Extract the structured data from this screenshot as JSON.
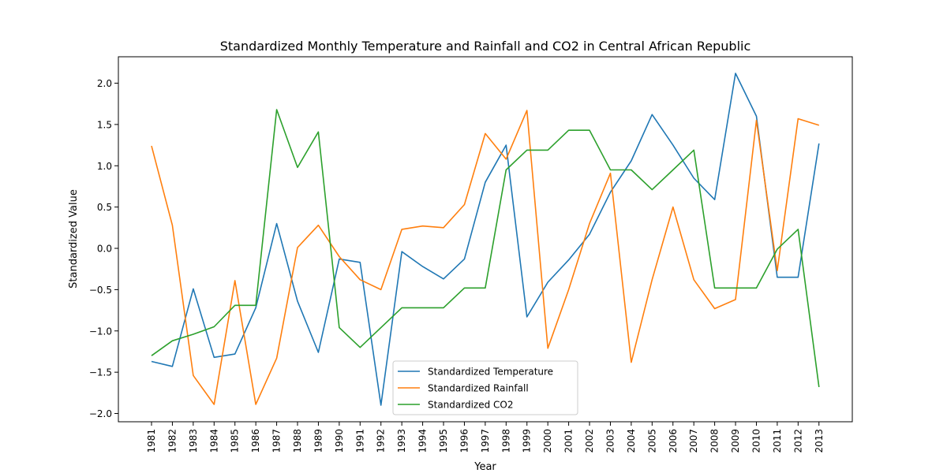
{
  "chart_data": {
    "type": "line",
    "title": "Standardized Monthly Temperature and Rainfall and CO2 in Central African Republic",
    "xlabel": "Year",
    "ylabel": "Standardized Value",
    "x": [
      "1981",
      "1982",
      "1983",
      "1984",
      "1985",
      "1986",
      "1987",
      "1988",
      "1989",
      "1990",
      "1991",
      "1992",
      "1993",
      "1994",
      "1995",
      "1996",
      "1997",
      "1998",
      "1999",
      "2000",
      "2001",
      "2002",
      "2003",
      "2004",
      "2005",
      "2006",
      "2007",
      "2008",
      "2009",
      "2010",
      "2011",
      "2012",
      "2013"
    ],
    "yticks": [
      "−2.0",
      "−1.5",
      "−1.0",
      "−0.5",
      "0.0",
      "0.5",
      "1.0",
      "1.5",
      "2.0"
    ],
    "ylim": [
      -2.1,
      2.32
    ],
    "grid": false,
    "legend_position": "lower-center",
    "series": [
      {
        "name": "Standardized Temperature",
        "color": "#1f77b4",
        "values": [
          -1.37,
          -1.43,
          -0.49,
          -1.32,
          -1.28,
          -0.72,
          0.3,
          -0.64,
          -1.26,
          -0.13,
          -0.17,
          -1.9,
          -0.04,
          -0.22,
          -0.37,
          -0.13,
          0.8,
          1.25,
          -0.83,
          -0.41,
          -0.14,
          0.17,
          0.68,
          1.06,
          1.62,
          1.25,
          0.85,
          0.59,
          2.12,
          1.6,
          -0.35,
          -0.35,
          1.27
        ]
      },
      {
        "name": "Standardized Rainfall",
        "color": "#ff7f0e",
        "values": [
          1.24,
          0.28,
          -1.54,
          -1.89,
          -0.39,
          -1.89,
          -1.33,
          0.01,
          0.28,
          -0.1,
          -0.38,
          -0.5,
          0.23,
          0.27,
          0.25,
          0.53,
          1.39,
          1.08,
          1.67,
          -1.21,
          -0.5,
          0.3,
          0.91,
          -1.38,
          -0.38,
          0.5,
          -0.38,
          -0.73,
          -0.62,
          1.55,
          -0.27,
          1.57,
          1.49
        ]
      },
      {
        "name": "Standardized CO2",
        "color": "#2ca02c",
        "values": [
          -1.3,
          -1.12,
          -1.04,
          -0.95,
          -0.69,
          -0.69,
          1.68,
          0.98,
          1.41,
          -0.96,
          -1.2,
          -0.96,
          -0.72,
          -0.72,
          -0.72,
          -0.48,
          -0.48,
          0.95,
          1.19,
          1.19,
          1.43,
          1.43,
          0.95,
          0.95,
          0.71,
          0.95,
          1.19,
          -0.48,
          -0.48,
          -0.48,
          -0.01,
          0.23,
          -1.68
        ]
      }
    ]
  }
}
